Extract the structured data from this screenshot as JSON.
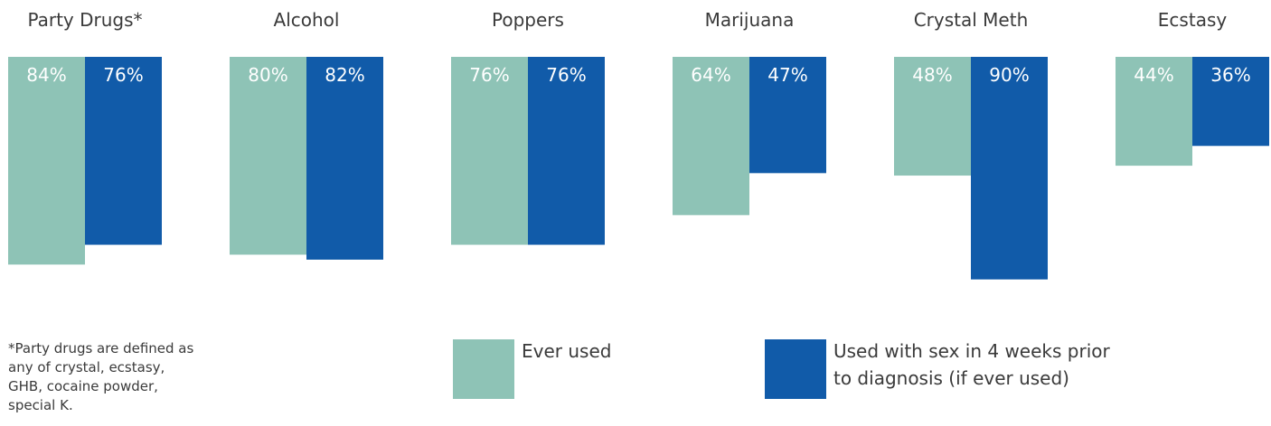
{
  "chart_data": {
    "type": "bar",
    "categories": [
      "Party Drugs*",
      "Alcohol",
      "Poppers",
      "Marijuana",
      "Crystal Meth",
      "Ecstasy"
    ],
    "series": [
      {
        "name": "Ever used",
        "values": [
          84,
          80,
          76,
          64,
          48,
          44
        ],
        "labels": [
          "84%",
          "80%",
          "76%",
          "64%",
          "48%",
          "44%"
        ],
        "color": "#8ec3b6"
      },
      {
        "name": "Used with sex in 4 weeks prior to diagnosis (if ever used)",
        "values": [
          76,
          82,
          76,
          47,
          90,
          36
        ],
        "labels": [
          "76%",
          "82%",
          "76%",
          "47%",
          "90%",
          "36%"
        ],
        "color": "#115ba9"
      }
    ],
    "orientation": "bars hang downward from top baseline",
    "legend_placement": "bottom",
    "grid": false
  },
  "legend": {
    "ever_used": "Ever used",
    "used_with_sex_line1": "Used with sex in 4 weeks prior",
    "used_with_sex_line2": "to diagnosis (if ever used)"
  },
  "footnote": "*Party drugs are defined as any of crystal, ecstasy, GHB, cocaine powder, special K."
}
